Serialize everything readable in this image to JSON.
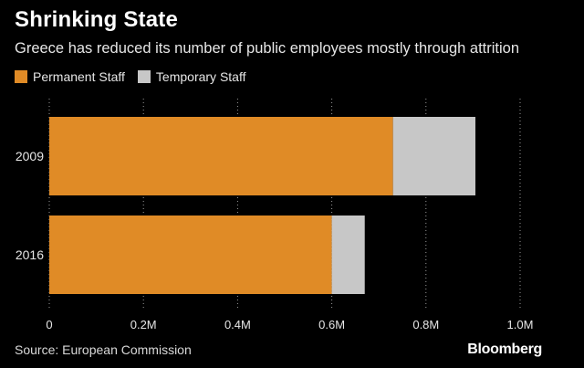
{
  "header": {
    "title": "Shrinking State",
    "subtitle": "Greece has reduced its number of public employees mostly through attrition"
  },
  "footer": {
    "source": "Source: European Commission",
    "brand": "Bloomberg"
  },
  "colors": {
    "background": "#000000",
    "permanent": "#e08b26",
    "temporary": "#c7c7c7",
    "grid": "#9a9a9a",
    "text": "#ffffff"
  },
  "chart_data": {
    "type": "bar",
    "orientation": "horizontal",
    "stacked": true,
    "categories": [
      "2009",
      "2016"
    ],
    "series": [
      {
        "name": "Permanent Staff",
        "values": [
          0.73,
          0.6
        ],
        "color": "#e08b26"
      },
      {
        "name": "Temporary Staff",
        "values": [
          0.175,
          0.07
        ],
        "color": "#c7c7c7"
      }
    ],
    "xlim": [
      0,
      1.0
    ],
    "xticks": [
      0,
      0.2,
      0.4,
      0.6,
      0.8,
      1.0
    ],
    "xtick_labels": [
      "0",
      "0.2M",
      "0.4M",
      "0.6M",
      "0.8M",
      "1.0M"
    ],
    "grid": "vertical dotted",
    "legend_position": "top-left",
    "title": "Shrinking State"
  }
}
